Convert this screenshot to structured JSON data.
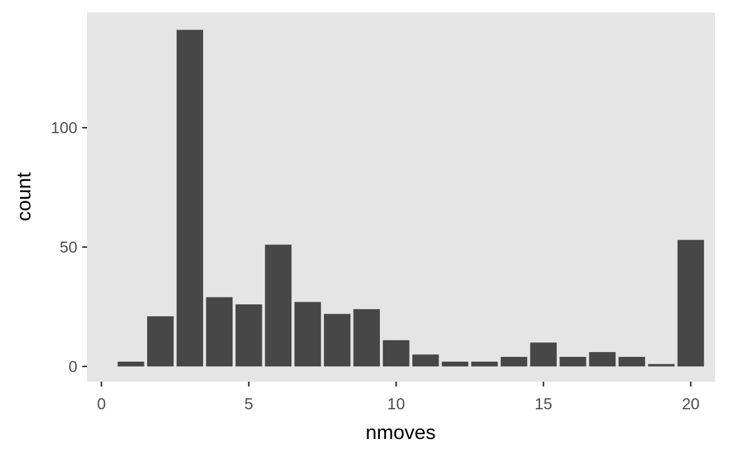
{
  "chart_data": {
    "type": "bar",
    "title": "",
    "xlabel": "nmoves",
    "ylabel": "count",
    "x": [
      1,
      2,
      3,
      4,
      5,
      6,
      7,
      8,
      9,
      10,
      11,
      12,
      13,
      14,
      15,
      16,
      17,
      18,
      19,
      20
    ],
    "values": [
      2,
      21,
      141,
      29,
      26,
      51,
      27,
      22,
      24,
      11,
      5,
      2,
      2,
      4,
      10,
      4,
      6,
      4,
      1,
      53
    ],
    "xlim": [
      -0.49,
      20.82
    ],
    "ylim": [
      -6.4,
      148.3
    ],
    "xticks": [
      0,
      5,
      10,
      15,
      20
    ],
    "xtick_labels": [
      "0",
      "5",
      "10",
      "15",
      "20"
    ],
    "yticks": [
      0,
      50,
      100
    ],
    "ytick_labels": [
      "0",
      "50",
      "100"
    ],
    "grid": false,
    "colors": {
      "bar": "#474747",
      "panel": "#e5e5e5",
      "axis_text": "#4d4d4d"
    }
  }
}
